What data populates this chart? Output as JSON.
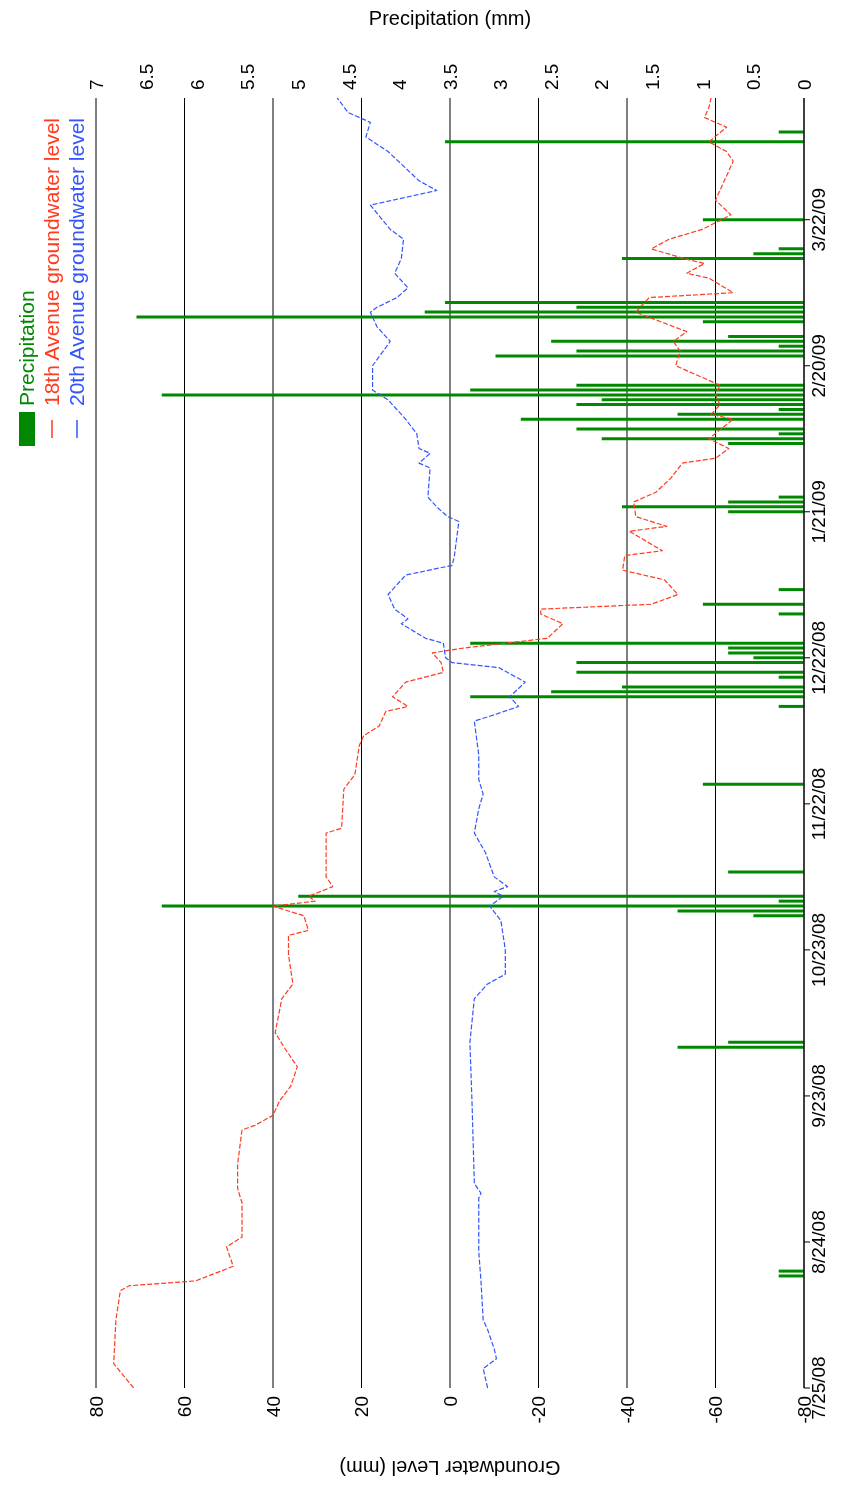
{
  "chart_data": {
    "type": "line",
    "orientation": "horizontal",
    "xlabel": "Groundwater Level (mm)",
    "x2label": "Precipitation (mm)",
    "ylim": [
      "2008-07-25",
      "2009-04-16"
    ],
    "yticks": [
      {
        "value": "2008-07-25",
        "label": "7/25/08"
      },
      {
        "value": "2008-08-24",
        "label": "8/24/08"
      },
      {
        "value": "2008-09-23",
        "label": "9/23/08"
      },
      {
        "value": "2008-10-23",
        "label": "10/23/08"
      },
      {
        "value": "2008-11-22",
        "label": "11/22/08"
      },
      {
        "value": "2008-12-22",
        "label": "12/22/08"
      },
      {
        "value": "2009-01-21",
        "label": "1/21/09"
      },
      {
        "value": "2009-02-20",
        "label": "2/20/09"
      },
      {
        "value": "2009-03-22",
        "label": "3/22/09"
      }
    ],
    "xlim": [
      80,
      -80
    ],
    "xticks": [
      80,
      60,
      40,
      20,
      0,
      -20,
      -40,
      -60,
      -80
    ],
    "x2lim": [
      7,
      0
    ],
    "x2ticks": [
      7,
      6.5,
      6,
      5.5,
      5,
      4.5,
      4,
      3.5,
      3,
      2.5,
      2,
      1.5,
      1,
      0.5,
      0
    ],
    "grid": "x",
    "legend": "top left",
    "marker": "none",
    "line_style": "dashed",
    "series": [
      {
        "name": "Precipitation",
        "type": "bar",
        "axis": "x2",
        "color": "#008800",
        "x": [
          "2008-08-17",
          "2008-08-18",
          "2008-10-03",
          "2008-10-04",
          "2008-10-30",
          "2008-10-31",
          "2008-11-01",
          "2008-11-02",
          "2008-11-03",
          "2008-11-08",
          "2008-11-26",
          "2008-12-12",
          "2008-12-14",
          "2008-12-15",
          "2008-12-16",
          "2008-12-18",
          "2008-12-19",
          "2008-12-21",
          "2008-12-22",
          "2008-12-23",
          "2008-12-24",
          "2008-12-25",
          "2008-12-31",
          "2009-01-02",
          "2009-01-05",
          "2009-01-21",
          "2009-01-22",
          "2009-01-23",
          "2009-01-24",
          "2009-02-04",
          "2009-02-05",
          "2009-02-06",
          "2009-02-07",
          "2009-02-09",
          "2009-02-10",
          "2009-02-11",
          "2009-02-12",
          "2009-02-13",
          "2009-02-14",
          "2009-02-15",
          "2009-02-16",
          "2009-02-22",
          "2009-02-23",
          "2009-02-24",
          "2009-02-25",
          "2009-02-26",
          "2009-03-01",
          "2009-03-02",
          "2009-03-03",
          "2009-03-04",
          "2009-03-05",
          "2009-03-14",
          "2009-03-15",
          "2009-03-16",
          "2009-03-22",
          "2009-04-07",
          "2009-04-09"
        ],
        "values": [
          0.25,
          0.25,
          1.25,
          0.75,
          0.5,
          1.25,
          6.35,
          0.25,
          5,
          0.75,
          1,
          0.25,
          3.3,
          2.5,
          1.8,
          0.25,
          2.25,
          2.25,
          0.5,
          0.75,
          0.75,
          3.3,
          0.25,
          1,
          0.25,
          0.75,
          1.8,
          0.75,
          0.25,
          0.75,
          2,
          0.25,
          2.25,
          2.8,
          1.25,
          0.25,
          2.25,
          2,
          6.35,
          3.3,
          2.25,
          3.05,
          2.25,
          0.25,
          2.5,
          0.75,
          1,
          6.6,
          3.75,
          2.25,
          3.55,
          1.8,
          0.5,
          0.25,
          1,
          3.55,
          0.25
        ]
      },
      {
        "name": "18th Avenue groundwater level",
        "color": "#ff3b1f",
        "x": [
          "2008-07-25",
          "2008-07-30",
          "2008-08-08",
          "2008-08-14",
          "2008-08-15",
          "2008-08-16",
          "2008-08-19",
          "2008-08-23",
          "2008-08-25",
          "2008-09-01",
          "2008-09-04",
          "2008-09-09",
          "2008-09-16",
          "2008-09-17",
          "2008-09-19",
          "2008-09-22",
          "2008-09-25",
          "2008-09-29",
          "2008-10-03",
          "2008-10-06",
          "2008-10-13",
          "2008-10-16",
          "2008-10-22",
          "2008-10-26",
          "2008-10-27",
          "2008-10-30",
          "2008-11-01",
          "2008-11-02",
          "2008-11-03",
          "2008-11-05",
          "2008-11-07",
          "2008-11-16",
          "2008-11-17",
          "2008-11-25",
          "2008-11-28",
          "2008-12-04",
          "2008-12-06",
          "2008-12-08",
          "2008-12-11",
          "2008-12-12",
          "2008-12-14",
          "2008-12-17",
          "2008-12-19",
          "2008-12-21",
          "2008-12-23",
          "2008-12-24",
          "2008-12-26",
          "2008-12-29",
          "2008-12-31",
          "2009-01-01",
          "2009-01-02",
          "2009-01-04",
          "2009-01-07",
          "2009-01-09",
          "2009-01-12",
          "2009-01-13",
          "2009-01-17",
          "2009-01-18",
          "2009-01-20",
          "2009-01-23",
          "2009-01-25",
          "2009-01-28",
          "2009-01-31",
          "2009-02-01",
          "2009-02-03",
          "2009-02-05",
          "2009-02-09",
          "2009-02-10",
          "2009-02-12",
          "2009-02-14",
          "2009-02-16",
          "2009-02-20",
          "2009-02-23",
          "2009-02-25",
          "2009-02-27",
          "2009-03-03",
          "2009-03-06",
          "2009-03-07",
          "2009-03-10",
          "2009-03-11",
          "2009-03-13",
          "2009-03-14",
          "2009-03-16",
          "2009-03-18",
          "2009-03-20",
          "2009-03-23",
          "2009-03-26",
          "2009-03-28",
          "2009-04-03",
          "2009-04-05",
          "2009-04-07",
          "2009-04-10",
          "2009-04-12",
          "2009-04-14",
          "2009-04-16"
        ],
        "values": [
          71.5,
          76,
          75.5,
          74.5,
          72.5,
          57.5,
          49,
          50.5,
          47,
          47,
          48,
          48,
          47,
          44,
          40,
          38.5,
          36,
          34.5,
          37.5,
          39.5,
          38,
          35.5,
          36.5,
          36.5,
          32,
          33,
          40,
          30.5,
          32,
          26.5,
          28,
          28,
          24.5,
          24,
          21.5,
          20.5,
          19.5,
          16,
          14.5,
          9.5,
          13,
          10,
          1.5,
          2,
          4,
          -3,
          -22,
          -25.5,
          -20.5,
          -20.5,
          -45.5,
          -51.5,
          -48.5,
          -39,
          -39.5,
          -48,
          -40.5,
          -49,
          -42,
          -41.5,
          -46.5,
          -50,
          -52.5,
          -60,
          -63,
          -58.5,
          -64,
          -59,
          -61,
          -60,
          -61,
          -51,
          -52,
          -50.5,
          -53.5,
          -42,
          -45,
          -64,
          -58.5,
          -53.5,
          -57.5,
          -53,
          -45.5,
          -49.5,
          -57,
          -63.5,
          -60,
          -61,
          -64,
          -62.5,
          -58.5,
          -62.5,
          -57.5,
          -58.5,
          -59
        ]
      },
      {
        "name": "20th Avenue groundwater level",
        "color": "#3355ff",
        "x": [
          "2008-07-25",
          "2008-07-29",
          "2008-07-31",
          "2008-08-02",
          "2008-08-06",
          "2008-08-08",
          "2008-08-16",
          "2008-08-22",
          "2008-09-02",
          "2008-09-03",
          "2008-09-05",
          "2008-09-21",
          "2008-10-04",
          "2008-10-13",
          "2008-10-16",
          "2008-10-18",
          "2008-10-23",
          "2008-10-29",
          "2008-11-01",
          "2008-11-03",
          "2008-11-04",
          "2008-11-05",
          "2008-11-07",
          "2008-11-12",
          "2008-11-16",
          "2008-11-21",
          "2008-11-24",
          "2008-11-27",
          "2008-12-02",
          "2008-12-09",
          "2008-12-10",
          "2008-12-12",
          "2008-12-14",
          "2008-12-17",
          "2008-12-20",
          "2008-12-21",
          "2008-12-22",
          "2008-12-25",
          "2008-12-26",
          "2008-12-29",
          "2008-12-30",
          "2009-01-01",
          "2009-01-04",
          "2009-01-08",
          "2009-01-10",
          "2009-01-12",
          "2009-01-19",
          "2009-01-20",
          "2009-01-22",
          "2009-01-24",
          "2009-01-30",
          "2009-01-31",
          "2009-02-02",
          "2009-02-03",
          "2009-02-06",
          "2009-02-09",
          "2009-02-13",
          "2009-02-15",
          "2009-02-20",
          "2009-02-25",
          "2009-02-28",
          "2009-03-03",
          "2009-03-04",
          "2009-03-06",
          "2009-03-08",
          "2009-03-11",
          "2009-03-14",
          "2009-03-18",
          "2009-03-20",
          "2009-03-25",
          "2009-03-28",
          "2009-03-30",
          "2009-04-02",
          "2009-04-05",
          "2009-04-08",
          "2009-04-11",
          "2009-04-13",
          "2009-04-16"
        ],
        "values": [
          -8.5,
          -7.5,
          -10.5,
          -10,
          -8.5,
          -7.5,
          -7,
          -6.5,
          -6.5,
          -7,
          -5.5,
          -5,
          -4.5,
          -5.5,
          -8.5,
          -12.5,
          -12.5,
          -11.5,
          -9,
          -12,
          -10,
          -13,
          -10,
          -8,
          -5.5,
          -6.5,
          -7.5,
          -6.5,
          -6.5,
          -5.5,
          -9,
          -15.5,
          -13.5,
          -17,
          -11,
          -0.5,
          1,
          1.5,
          5.5,
          11,
          9.5,
          12.5,
          14,
          10,
          -0.5,
          -1,
          -2,
          0.5,
          3,
          5,
          4.5,
          7,
          4.5,
          7,
          7.5,
          10,
          14,
          17.5,
          17.5,
          13.5,
          16.5,
          18,
          16.5,
          12,
          9.5,
          12.5,
          11,
          10.5,
          13.5,
          18,
          3,
          7,
          10.5,
          14,
          19,
          18,
          23,
          25.5
        ]
      }
    ]
  }
}
